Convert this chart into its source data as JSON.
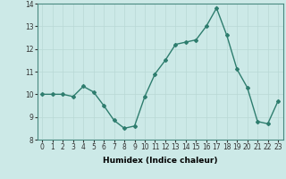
{
  "x": [
    0,
    1,
    2,
    3,
    4,
    5,
    6,
    7,
    8,
    9,
    10,
    11,
    12,
    13,
    14,
    15,
    16,
    17,
    18,
    19,
    20,
    21,
    22,
    23
  ],
  "y": [
    10.0,
    10.0,
    10.0,
    9.9,
    10.35,
    10.1,
    9.5,
    8.85,
    8.5,
    8.6,
    9.9,
    10.9,
    11.5,
    12.2,
    12.3,
    12.4,
    13.0,
    13.8,
    12.6,
    11.1,
    10.3,
    8.8,
    8.7,
    9.7
  ],
  "line_color": "#2e7d6e",
  "marker": "D",
  "markersize": 2.0,
  "linewidth": 1.0,
  "bg_color": "#cce9e7",
  "grid_color": "#b8d8d5",
  "xlabel": "Humidex (Indice chaleur)",
  "xlabel_fontsize": 6.5,
  "ylim": [
    8,
    14
  ],
  "xlim": [
    -0.5,
    23.5
  ],
  "yticks": [
    8,
    9,
    10,
    11,
    12,
    13,
    14
  ],
  "xticks": [
    0,
    1,
    2,
    3,
    4,
    5,
    6,
    7,
    8,
    9,
    10,
    11,
    12,
    13,
    14,
    15,
    16,
    17,
    18,
    19,
    20,
    21,
    22,
    23
  ],
  "tick_fontsize": 5.5
}
